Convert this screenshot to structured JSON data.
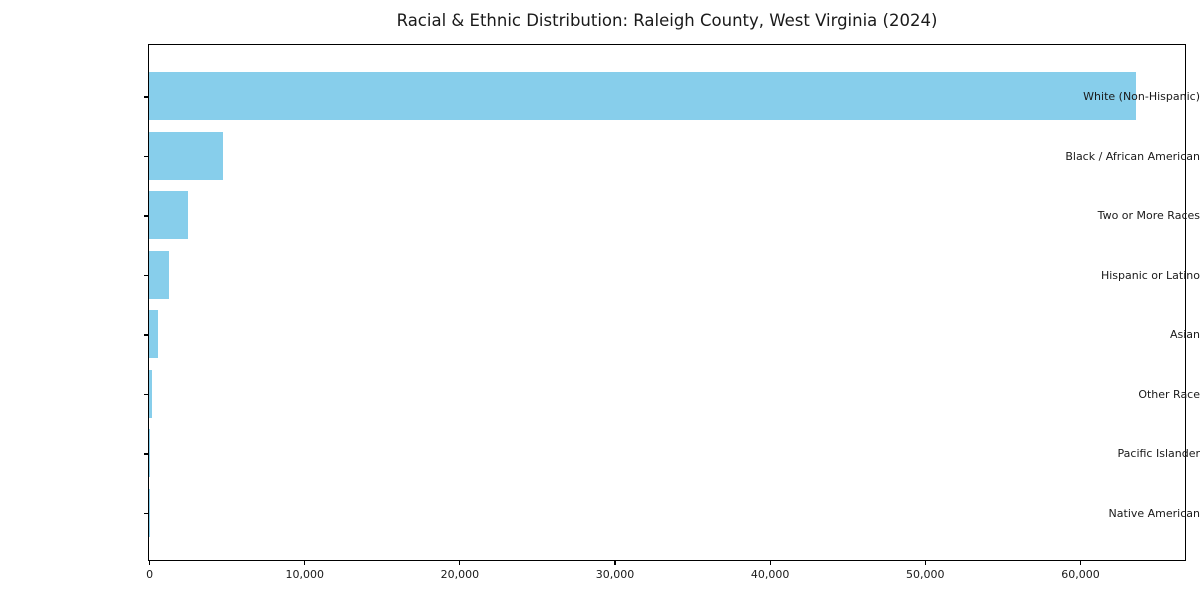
{
  "figure": {
    "background_color": "#ffffff",
    "text_color": "#1a1a1a",
    "axis_color": "#000000"
  },
  "chart_data": {
    "type": "bar",
    "orientation": "horizontal",
    "title": "Racial & Ethnic Distribution: Raleigh County, West Virginia (2024)",
    "categories": [
      "White (Non-Hispanic)",
      "Black / African American",
      "Two or More Races",
      "Hispanic or Latino",
      "Asian",
      "Other Race",
      "Pacific Islander",
      "Native American"
    ],
    "values": [
      63600,
      4800,
      2500,
      1300,
      580,
      180,
      30,
      20
    ],
    "bar_color": "#87CEEB",
    "xlabel": "",
    "ylabel": "",
    "xlim": [
      0,
      66700
    ],
    "x_ticks": [
      0,
      10000,
      20000,
      30000,
      40000,
      50000,
      60000
    ],
    "x_tick_labels": [
      "0",
      "10,000",
      "20,000",
      "30,000",
      "40,000",
      "50,000",
      "60,000"
    ],
    "grid": false,
    "legend": null
  }
}
